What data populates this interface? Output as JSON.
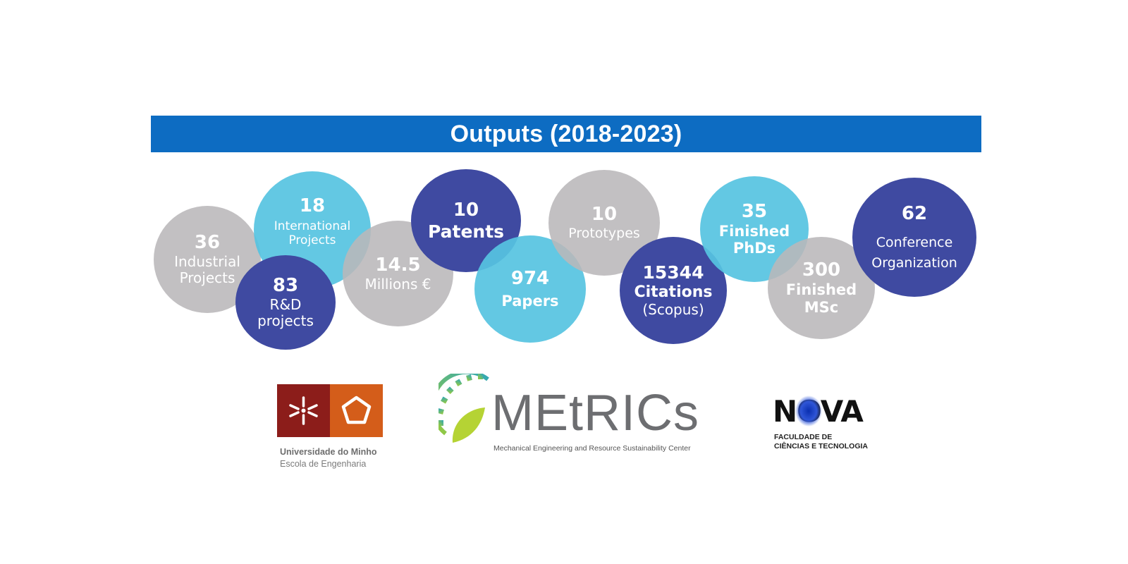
{
  "header": {
    "title": "Outputs (2018-2023)"
  },
  "colors": {
    "banner": "#0d6cc2",
    "navy": "#3f4aa1",
    "cyan": "#56c3e1",
    "grey": "#bab7b9"
  },
  "outputs": {
    "industrial": {
      "value": "36",
      "label1": "Industrial",
      "label2": "Projects"
    },
    "international": {
      "value": "18",
      "label1": "International",
      "label2": "Projects"
    },
    "rd": {
      "value": "83",
      "label1": "R&D",
      "label2": "projects"
    },
    "millions": {
      "value": "14.5",
      "label1": "Millions €"
    },
    "patents": {
      "value": "10",
      "label1": "Patents"
    },
    "papers": {
      "value": "974",
      "label1": "Papers"
    },
    "prototypes": {
      "value": "10",
      "label1": "Prototypes"
    },
    "citations": {
      "value": "15344",
      "label1": "Citations",
      "label2": "(Scopus)"
    },
    "phds": {
      "value": "35",
      "label1": "Finished",
      "label2": "PhDs"
    },
    "msc": {
      "value": "300",
      "label1": "Finished",
      "label2": "MSc"
    },
    "conference": {
      "value": "62",
      "label1": "Conference",
      "label2": "Organization"
    }
  },
  "logos": {
    "uminho": {
      "name": "Universidade do Minho",
      "sub": "Escola de Engenharia"
    },
    "metrics": {
      "name": "MEtRICs",
      "sub": "Mechanical Engineering and Resource Sustainability Center"
    },
    "nova": {
      "name": "NOVA",
      "sub1": "FACULDADE DE",
      "sub2": "CIÊNCIAS E TECNOLOGIA"
    }
  }
}
